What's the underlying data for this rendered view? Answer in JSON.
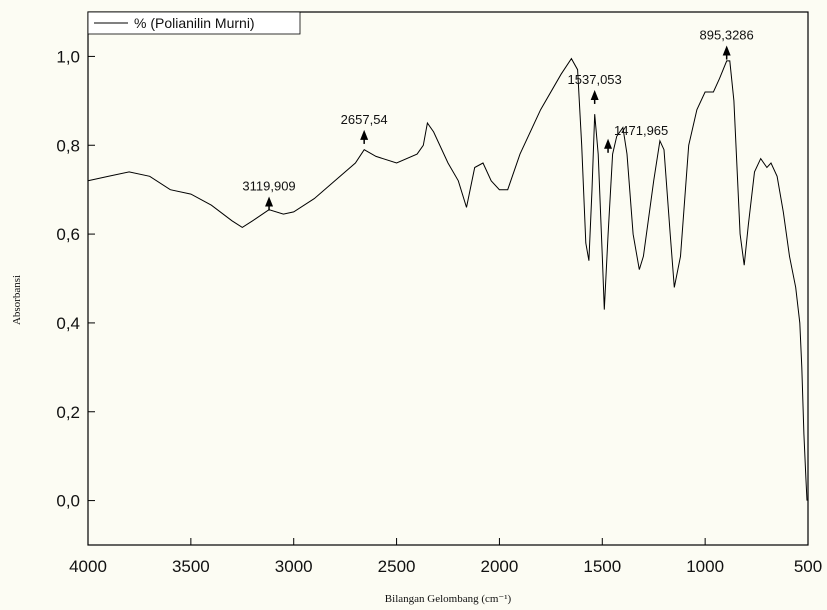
{
  "chart_data": {
    "type": "line",
    "x_label": "Bilangan Gelombang (cm⁻¹)",
    "y_label": "Absorbansi",
    "x": [
      4000,
      3900,
      3800,
      3700,
      3600,
      3500,
      3400,
      3300,
      3250,
      3200,
      3119.909,
      3050,
      3000,
      2900,
      2800,
      2700,
      2657.54,
      2600,
      2500,
      2400,
      2370,
      2350,
      2320,
      2250,
      2200,
      2160,
      2120,
      2080,
      2040,
      2000,
      1960,
      1900,
      1800,
      1700,
      1650,
      1620,
      1600,
      1580,
      1565,
      1550,
      1537.053,
      1520,
      1500,
      1490,
      1471.965,
      1450,
      1430,
      1400,
      1380,
      1350,
      1320,
      1300,
      1250,
      1220,
      1200,
      1170,
      1150,
      1120,
      1080,
      1040,
      1000,
      960,
      930,
      895.3286,
      880,
      860,
      830,
      810,
      790,
      760,
      730,
      700,
      680,
      650,
      620,
      590,
      560,
      540,
      530,
      520,
      510,
      505
    ],
    "series": [
      {
        "name": "% (Polianilin Murni)",
        "color": "#000000",
        "values": [
          0.72,
          0.73,
          0.74,
          0.73,
          0.7,
          0.69,
          0.665,
          0.63,
          0.615,
          0.63,
          0.655,
          0.645,
          0.65,
          0.68,
          0.72,
          0.76,
          0.79,
          0.775,
          0.76,
          0.78,
          0.8,
          0.85,
          0.83,
          0.76,
          0.72,
          0.66,
          0.75,
          0.76,
          0.72,
          0.7,
          0.7,
          0.78,
          0.88,
          0.96,
          0.995,
          0.97,
          0.8,
          0.58,
          0.54,
          0.7,
          0.87,
          0.78,
          0.55,
          0.43,
          0.6,
          0.78,
          0.82,
          0.84,
          0.78,
          0.6,
          0.52,
          0.55,
          0.72,
          0.81,
          0.79,
          0.6,
          0.48,
          0.55,
          0.8,
          0.88,
          0.92,
          0.92,
          0.95,
          0.99,
          0.99,
          0.9,
          0.6,
          0.53,
          0.62,
          0.74,
          0.77,
          0.75,
          0.76,
          0.73,
          0.65,
          0.55,
          0.48,
          0.4,
          0.3,
          0.15,
          0.05,
          0.0
        ]
      }
    ],
    "annotations": [
      {
        "label": "3119,909",
        "x": 3119.909,
        "y": 0.68
      },
      {
        "label": "2657,54",
        "x": 2657.54,
        "y": 0.83
      },
      {
        "label": "1537,053",
        "x": 1537.053,
        "y": 0.92
      },
      {
        "label": "1471,965",
        "x": 1471.965,
        "y": 0.81
      },
      {
        "label": "895,3286",
        "x": 895.3286,
        "y": 1.02
      }
    ],
    "xlim": [
      4000,
      500
    ],
    "ylim": [
      -0.1,
      1.1
    ],
    "xticks": [
      4000,
      3500,
      3000,
      2500,
      2000,
      1500,
      1000,
      500
    ],
    "yticks": [
      {
        "value": 0,
        "label": "0,0"
      },
      {
        "value": 0.2,
        "label": "0,2"
      },
      {
        "value": 0.4,
        "label": "0,4"
      },
      {
        "value": 0.6,
        "label": "0,6"
      },
      {
        "value": 0.8,
        "label": "0,8"
      },
      {
        "value": 1.0,
        "label": "1,0"
      }
    ],
    "legend": "top-left"
  }
}
